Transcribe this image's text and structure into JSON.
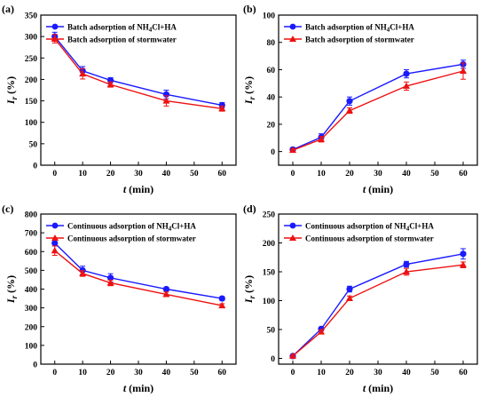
{
  "colors": {
    "blue": "#1a1aff",
    "red": "#ee1111"
  },
  "chart_data": [
    {
      "type": "line",
      "panel_label": "(a)",
      "xlabel": "t (min)",
      "ylabel": "Ir (%)",
      "xlim": [
        -5,
        65
      ],
      "ylim": [
        0,
        350
      ],
      "xticks": [
        0,
        10,
        20,
        30,
        40,
        50,
        60
      ],
      "yticks": [
        0,
        50,
        100,
        150,
        200,
        250,
        300,
        350
      ],
      "x": [
        0,
        10,
        20,
        40,
        60
      ],
      "series": [
        {
          "name": "Batch adsorption of NH4Cl+HA",
          "name_main": "Batch adsorption of NH",
          "name_sub": "4",
          "name_rest": "Cl+HA",
          "color": "blue",
          "marker": "circle",
          "values": [
            300,
            220,
            198,
            165,
            140
          ],
          "errors": [
            10,
            10,
            6,
            10,
            6
          ]
        },
        {
          "name": "Batch adsorption of stormwater",
          "name_main": "Batch adsorption of stormwater",
          "name_sub": "",
          "name_rest": "",
          "color": "red",
          "marker": "triangle",
          "values": [
            295,
            213,
            188,
            150,
            132
          ],
          "errors": [
            10,
            12,
            6,
            12,
            6
          ]
        }
      ]
    },
    {
      "type": "line",
      "panel_label": "(b)",
      "xlabel": "t (min)",
      "ylabel": "Ir (%)",
      "xlim": [
        -5,
        65
      ],
      "ylim": [
        -10,
        100
      ],
      "xticks": [
        0,
        10,
        20,
        30,
        40,
        50,
        60
      ],
      "yticks": [
        0,
        20,
        40,
        60,
        80,
        100
      ],
      "x": [
        0,
        10,
        20,
        40,
        60
      ],
      "series": [
        {
          "name": "Batch adsorption of NH4Cl+HA",
          "name_main": "Batch adsorption of NH",
          "name_sub": "4",
          "name_rest": "Cl+HA",
          "color": "blue",
          "marker": "circle",
          "values": [
            1.5,
            10.5,
            37,
            57,
            64
          ],
          "errors": [
            1,
            2.5,
            3,
            3,
            3
          ]
        },
        {
          "name": "Batch adsorption of stormwater",
          "name_main": "Batch adsorption of stormwater",
          "name_sub": "",
          "name_rest": "",
          "color": "red",
          "marker": "triangle",
          "values": [
            1,
            9,
            30,
            48,
            59
          ],
          "errors": [
            1,
            2,
            2,
            3,
            6
          ]
        }
      ]
    },
    {
      "type": "line",
      "panel_label": "(c)",
      "xlabel": "t (min)",
      "ylabel": "Ir (%)",
      "xlim": [
        -5,
        65
      ],
      "ylim": [
        0,
        800
      ],
      "xticks": [
        0,
        10,
        20,
        30,
        40,
        50,
        60
      ],
      "yticks": [
        0,
        100,
        200,
        300,
        400,
        500,
        600,
        700,
        800
      ],
      "x": [
        0,
        10,
        20,
        40,
        60
      ],
      "series": [
        {
          "name": "Continuous adsorption of NH4Cl+HA",
          "name_main": "Continuous adsorption of NH",
          "name_sub": "4",
          "name_rest": "Cl+HA",
          "color": "blue",
          "marker": "circle",
          "values": [
            645,
            500,
            460,
            400,
            350
          ],
          "errors": [
            15,
            22,
            22,
            10,
            10
          ]
        },
        {
          "name": "Continuous adsorption of stormwater",
          "name_main": "Continuous adsorption of stormwater",
          "name_sub": "",
          "name_rest": "",
          "color": "red",
          "marker": "triangle",
          "values": [
            605,
            483,
            433,
            372,
            312
          ],
          "errors": [
            25,
            15,
            15,
            12,
            10
          ]
        }
      ]
    },
    {
      "type": "line",
      "panel_label": "(d)",
      "xlabel": "t (min)",
      "ylabel": "Ir (%)",
      "xlim": [
        -5,
        65
      ],
      "ylim": [
        -10,
        250
      ],
      "xticks": [
        0,
        10,
        20,
        30,
        40,
        50,
        60
      ],
      "yticks": [
        0,
        50,
        100,
        150,
        200,
        250
      ],
      "x": [
        0,
        10,
        20,
        40,
        60
      ],
      "series": [
        {
          "name": "Continuous adsorption of NH4Cl+HA",
          "name_main": "Continuous adsorption of NH",
          "name_sub": "4",
          "name_rest": "Cl+HA",
          "color": "blue",
          "marker": "circle",
          "values": [
            4,
            51,
            120,
            163,
            181
          ],
          "errors": [
            2,
            3,
            5,
            5,
            9
          ]
        },
        {
          "name": "Continuous adsorption of stormwater",
          "name_main": "Continuous adsorption of stormwater",
          "name_sub": "",
          "name_rest": "",
          "color": "red",
          "marker": "triangle",
          "values": [
            4,
            46,
            104,
            150,
            162
          ],
          "errors": [
            2,
            3,
            4,
            6,
            5
          ]
        }
      ]
    }
  ]
}
